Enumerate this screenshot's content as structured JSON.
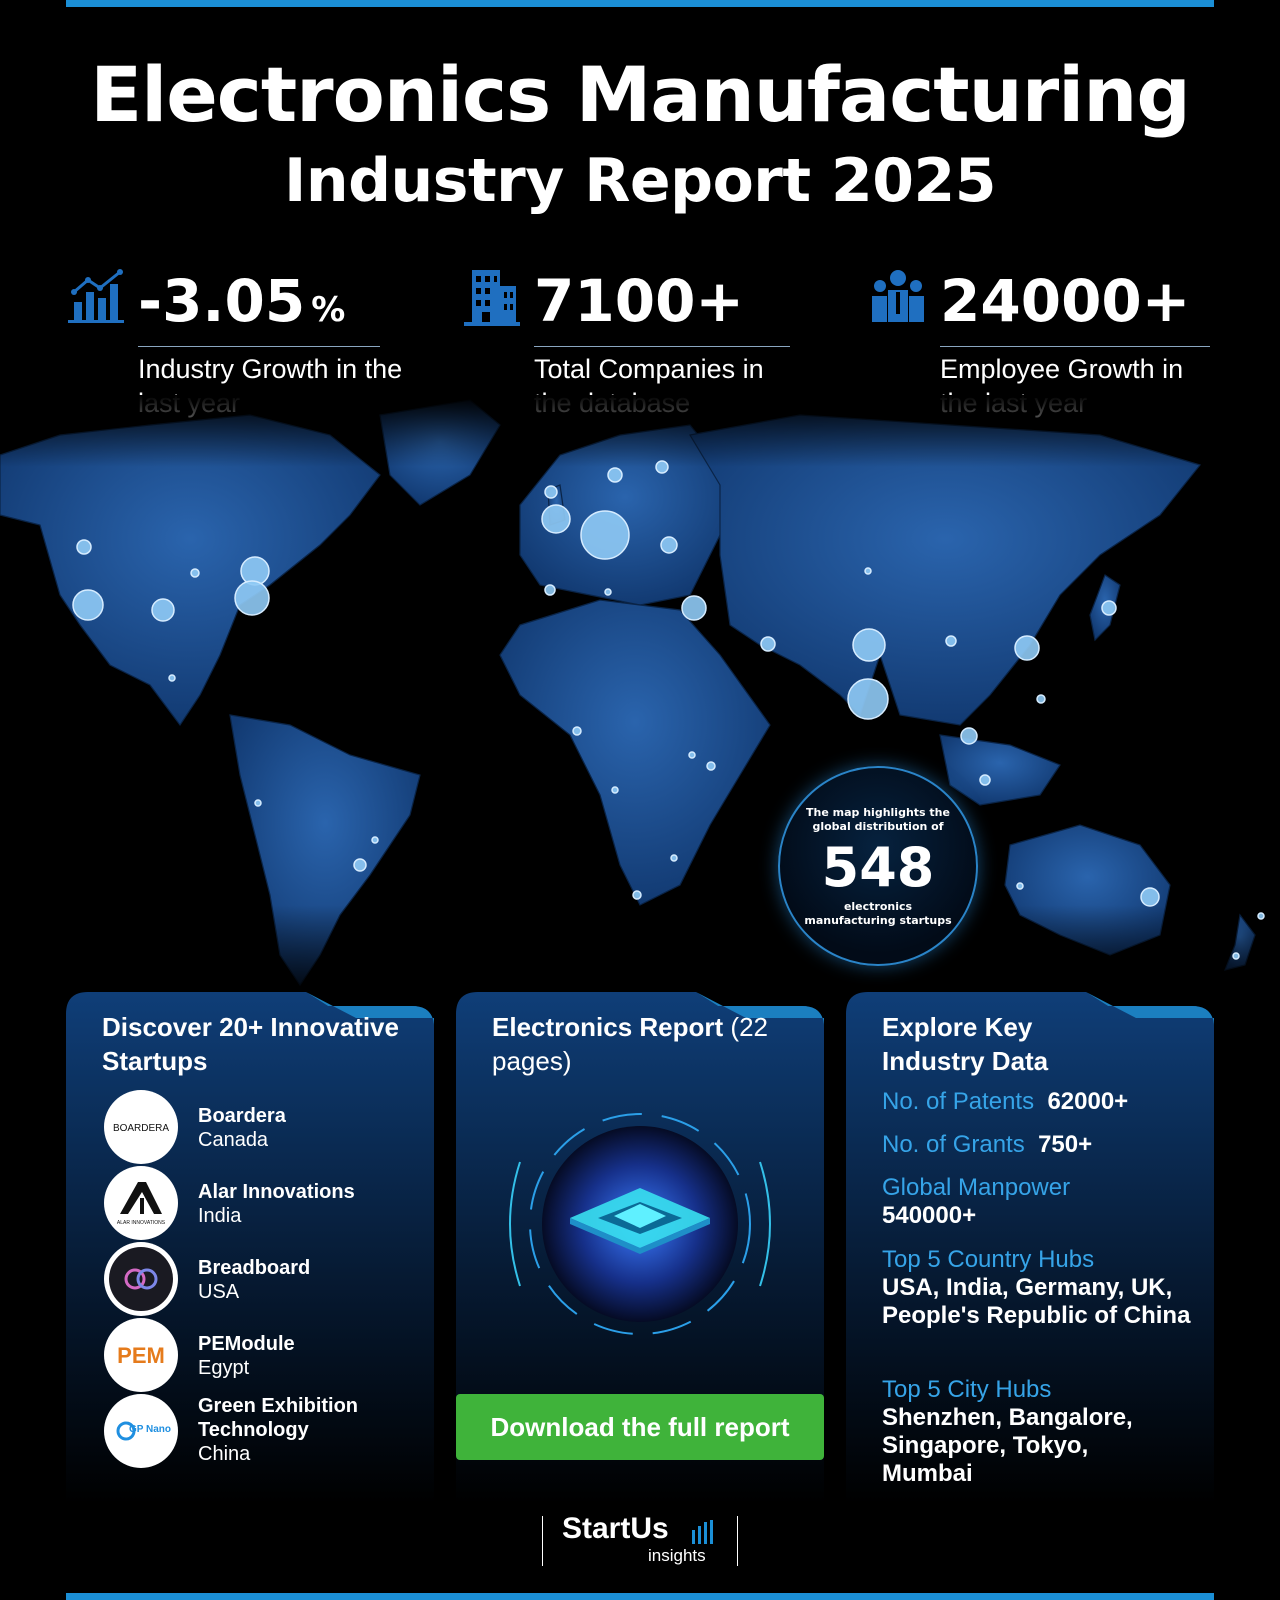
{
  "header": {
    "title_line1": "Electronics Manufacturing",
    "title_line2": "Industry Report 2025"
  },
  "stats": [
    {
      "icon": "growth-chart-icon",
      "value": "-3.05",
      "unit": "%",
      "label": "Industry Growth in the last year"
    },
    {
      "icon": "building-icon",
      "value": "7100+",
      "label": "Total Companies in the database"
    },
    {
      "icon": "people-icon",
      "value": "24000+",
      "label": "Employee Growth in the last year"
    }
  ],
  "map": {
    "info_line1": "The map highlights the global distribution of",
    "info_number": "548",
    "info_line2": "electronics manufacturing startups"
  },
  "startups_card": {
    "title": "Discover 20+ Innovative Startups",
    "items": [
      {
        "name": "Boardera",
        "country": "Canada",
        "logo_text": "BOARDERA"
      },
      {
        "name": "Alar Innovations",
        "country": "India",
        "logo_text": "ALAR INNOVATIONS"
      },
      {
        "name": "Breadboard",
        "country": "USA",
        "logo_text": ""
      },
      {
        "name": "PEModule",
        "country": "Egypt",
        "logo_text": "PEM"
      },
      {
        "name": "Green Exhibition Technology",
        "country": "China",
        "logo_text": "GP Nano"
      }
    ]
  },
  "report_card": {
    "title_bold": "Electronics Report",
    "title_light": "(22 pages)",
    "button_label": "Download the full report"
  },
  "data_card": {
    "title": "Explore Key Industry Data",
    "patents_label": "No. of Patents",
    "patents_value": "62000+",
    "grants_label": "No. of Grants",
    "grants_value": "750+",
    "manpower_label": "Global Manpower",
    "manpower_value": "540000+",
    "country_hubs_label": "Top 5 Country Hubs",
    "country_hubs_value": "USA, India, Germany, UK, People's Republic of China",
    "city_hubs_label": "Top 5 City Hubs",
    "city_hubs_value": "Shenzhen, Bangalore, Singapore, Tokyo, Mumbai"
  },
  "brand": {
    "name": "StartUs",
    "sub": "insights"
  },
  "colors": {
    "accent": "#1b8fd6",
    "map_fill": "#1c4f94",
    "dot": "#8fcaf5",
    "button": "#3fb33a",
    "label_blue": "#36a4e8"
  }
}
